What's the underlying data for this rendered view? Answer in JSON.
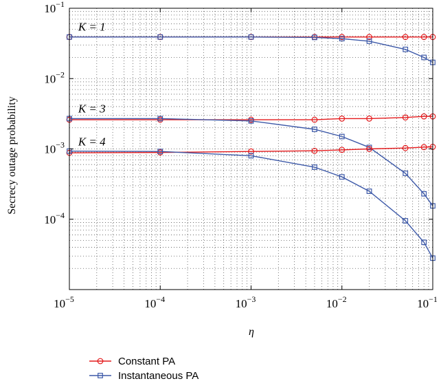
{
  "chart_data": {
    "type": "line",
    "xlabel": "η",
    "ylabel": "Secrecy outage probability",
    "x_scale": "log",
    "y_scale": "log",
    "xlim": [
      1e-05,
      0.1
    ],
    "ylim": [
      1e-05,
      0.1
    ],
    "x_tick_labels": [
      {
        "base": "10",
        "exp": "−5"
      },
      {
        "base": "10",
        "exp": "−4"
      },
      {
        "base": "10",
        "exp": "−3"
      },
      {
        "base": "10",
        "exp": "−2"
      },
      {
        "base": "10",
        "exp": "−1"
      }
    ],
    "y_tick_labels": [
      {
        "base": "10",
        "exp": "−1"
      },
      {
        "base": "10",
        "exp": "−2"
      },
      {
        "base": "10",
        "exp": "−3"
      },
      {
        "base": "10",
        "exp": "−4"
      }
    ],
    "grid": true,
    "legend_position": "bottom-left, below axes",
    "x": [
      1e-05,
      0.0001,
      0.001,
      0.005,
      0.01,
      0.02,
      0.05,
      0.08,
      0.1
    ],
    "series": [
      {
        "name": "Constant PA",
        "group": "K = 1",
        "color": "#e41a1c",
        "marker": "circle",
        "values": [
          0.039,
          0.039,
          0.039,
          0.039,
          0.039,
          0.039,
          0.039,
          0.039,
          0.039
        ]
      },
      {
        "name": "Instantaneous PA",
        "group": "K = 1",
        "color": "#3d59a8",
        "marker": "square",
        "values": [
          0.039,
          0.039,
          0.039,
          0.0385,
          0.037,
          0.034,
          0.026,
          0.02,
          0.017
        ]
      },
      {
        "name": "Constant PA",
        "group": "K = 3",
        "color": "#e41a1c",
        "marker": "circle",
        "values": [
          0.0026,
          0.0026,
          0.0026,
          0.0026,
          0.0027,
          0.0027,
          0.0028,
          0.0029,
          0.0029
        ]
      },
      {
        "name": "Instantaneous PA",
        "group": "K = 3",
        "color": "#3d59a8",
        "marker": "square",
        "values": [
          0.0027,
          0.0027,
          0.0025,
          0.0019,
          0.0015,
          0.00105,
          0.00045,
          0.00023,
          0.000155
        ]
      },
      {
        "name": "Constant PA",
        "group": "K = 4",
        "color": "#e41a1c",
        "marker": "circle",
        "values": [
          0.00088,
          0.00089,
          0.00092,
          0.00094,
          0.00097,
          0.001,
          0.00103,
          0.00106,
          0.00107
        ]
      },
      {
        "name": "Instantaneous PA",
        "group": "K = 4",
        "color": "#3d59a8",
        "marker": "square",
        "values": [
          0.00093,
          0.00092,
          0.0008,
          0.00055,
          0.0004,
          0.00025,
          9.5e-05,
          4.7e-05,
          2.8e-05
        ]
      }
    ],
    "annotations": [
      {
        "text": "K = 1",
        "x": 1.25e-05,
        "y": 0.048
      },
      {
        "text": "K = 3",
        "x": 1.25e-05,
        "y": 0.0033
      },
      {
        "text": "K = 4",
        "x": 1.25e-05,
        "y": 0.00112
      }
    ],
    "legend": [
      {
        "label": "Constant PA",
        "color": "#e41a1c",
        "marker": "circle"
      },
      {
        "label": "Instantaneous PA",
        "color": "#3d59a8",
        "marker": "square"
      }
    ]
  }
}
